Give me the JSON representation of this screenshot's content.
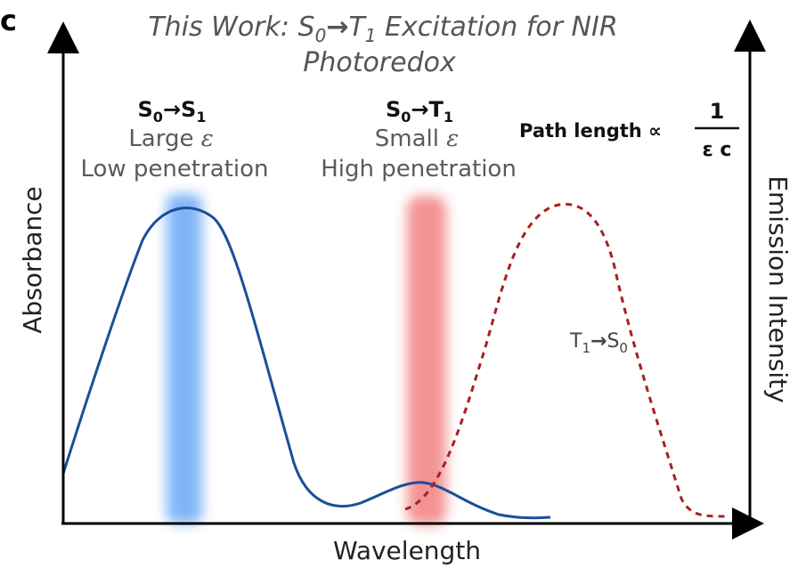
{
  "panel_letter": "c",
  "title": {
    "prefix": "This Work: S",
    "sub0": "0",
    "arrow": "→",
    "mid": "T",
    "sub1": "1",
    "suffix": " Excitation for NIR",
    "line2": "Photoredox"
  },
  "singlet_label": {
    "s": "S",
    "sub0": "0",
    "arrow": "→",
    "s2": "S",
    "sub1": "1",
    "line2_prefix": "Large ",
    "epsilon": "ε",
    "line3": "Low penetration"
  },
  "triplet_label": {
    "s": "S",
    "sub0": "0",
    "arrow": "→",
    "t": "T",
    "sub1": "1",
    "line2_prefix": "Small ",
    "epsilon": "ε",
    "line3": "High penetration"
  },
  "path_length": {
    "text": "Path length ∝",
    "numerator": "1",
    "denominator": "ε c"
  },
  "emission_label": {
    "t": "T",
    "sub1": "1",
    "arrow": "→",
    "s": "S",
    "sub0": "0"
  },
  "axes": {
    "x_label": "Wavelength",
    "y_left_label": "Absorbance",
    "y_right_label": "Emission Intensity"
  },
  "colors": {
    "absorbance_curve": "#1a4f9c",
    "emission_curve": "#a82020",
    "blue_band": "#6aa8f5",
    "red_band": "#f28080",
    "axis": "#000000"
  }
}
